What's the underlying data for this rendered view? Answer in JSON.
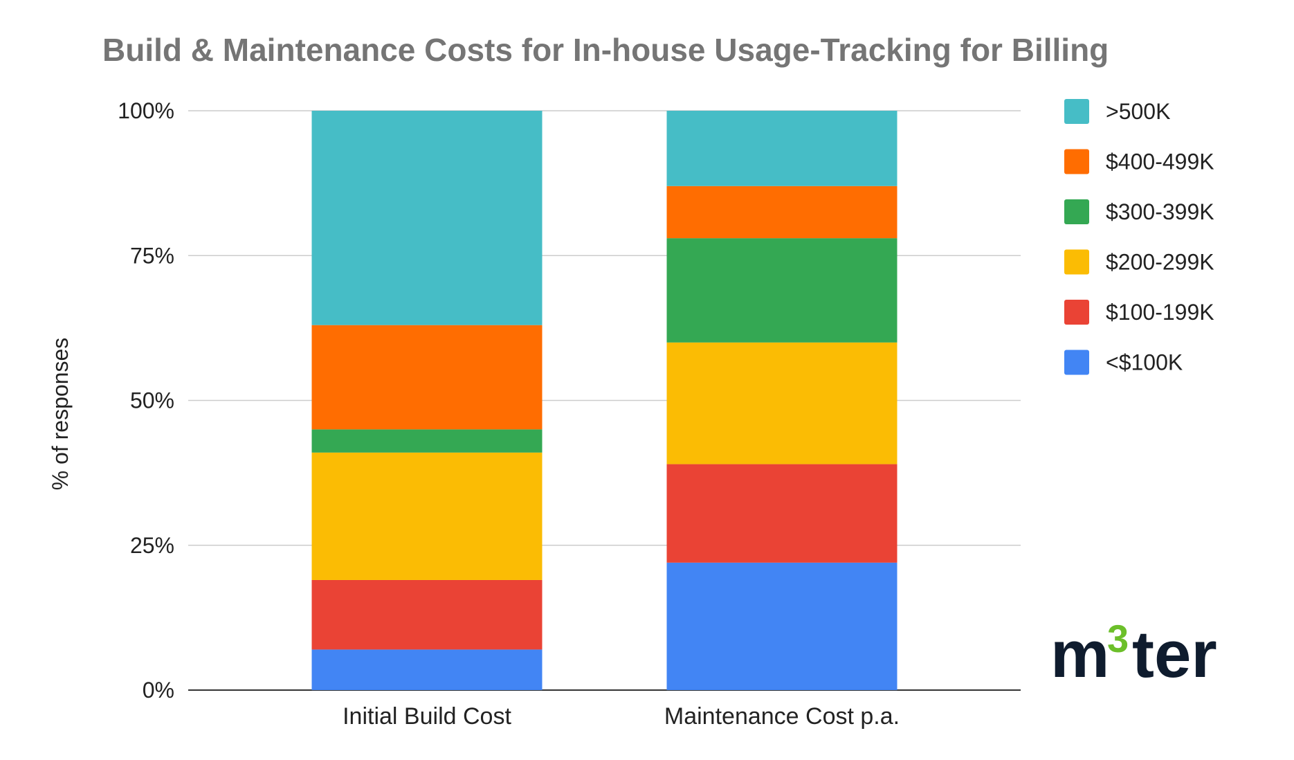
{
  "chart_data": {
    "type": "bar",
    "stacked": true,
    "title": "Build & Maintenance Costs for In-house Usage-Tracking for Billing",
    "xlabel": "",
    "ylabel": "% of responses",
    "ylim": [
      0,
      100
    ],
    "yticks": [
      "0%",
      "25%",
      "50%",
      "75%",
      "100%"
    ],
    "ytick_values": [
      0,
      25,
      50,
      75,
      100
    ],
    "grid": true,
    "legend_position": "right",
    "categories": [
      "Initial Build Cost",
      "Maintenance Cost p.a."
    ],
    "series": [
      {
        "name": "<$100K",
        "color": "#4285f4",
        "values": [
          7,
          22
        ]
      },
      {
        "name": "$100-199K",
        "color": "#ea4335",
        "values": [
          12,
          17
        ]
      },
      {
        "name": "$200-299K",
        "color": "#fbbc04",
        "values": [
          22,
          21
        ]
      },
      {
        "name": "$300-399K",
        "color": "#34a853",
        "values": [
          4,
          18
        ]
      },
      {
        "name": "$400-499K",
        "color": "#ff6d01",
        "values": [
          18,
          9
        ]
      },
      {
        "name": ">500K",
        "color": "#46bdc6",
        "values": [
          37,
          13
        ]
      }
    ]
  },
  "logo": {
    "text_before": "m",
    "superscript": "3",
    "text_after": "ter"
  }
}
